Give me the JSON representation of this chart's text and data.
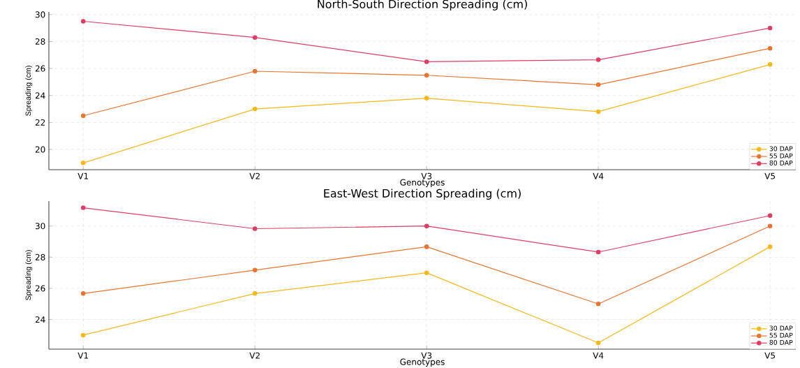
{
  "chart_data": [
    {
      "type": "line",
      "title": "North-South Direction Spreading (cm)",
      "xlabel": "Genotypes",
      "ylabel": "Spreading (cm)",
      "categories": [
        "V1",
        "V2",
        "V3",
        "V4",
        "V5"
      ],
      "ylim": [
        18.5,
        30.2
      ],
      "yticks": [
        20,
        22,
        24,
        26,
        28,
        30
      ],
      "grid": true,
      "legend": "bottom right",
      "marker": "circle",
      "line_style": "solid",
      "series": [
        {
          "name": "30 DAP",
          "color": "#f5b818",
          "values": [
            19.0,
            23.0,
            23.8,
            22.8,
            26.3
          ]
        },
        {
          "name": "55 DAP",
          "color": "#e8742f",
          "values": [
            22.5,
            25.8,
            25.5,
            24.8,
            27.5
          ]
        },
        {
          "name": "80 DAP",
          "color": "#e03c64",
          "values": [
            29.5,
            28.3,
            26.5,
            26.65,
            29.0
          ]
        }
      ]
    },
    {
      "type": "line",
      "title": "East-West Direction Spreading (cm)",
      "xlabel": "Genotypes",
      "ylabel": "Spreading (cm)",
      "categories": [
        "V1",
        "V2",
        "V3",
        "V4",
        "V5"
      ],
      "ylim": [
        22.1,
        31.6
      ],
      "yticks": [
        24,
        26,
        28,
        30
      ],
      "grid": true,
      "legend": "bottom right",
      "marker": "circle",
      "line_style": "solid",
      "series": [
        {
          "name": "30 DAP",
          "color": "#f5b818",
          "values": [
            23.0,
            25.67,
            27.0,
            22.5,
            28.67
          ]
        },
        {
          "name": "55 DAP",
          "color": "#e8742f",
          "values": [
            25.67,
            27.17,
            28.67,
            25.0,
            30.0
          ]
        },
        {
          "name": "80 DAP",
          "color": "#e03c64",
          "values": [
            31.17,
            29.83,
            30.0,
            28.33,
            30.67
          ]
        }
      ]
    }
  ]
}
